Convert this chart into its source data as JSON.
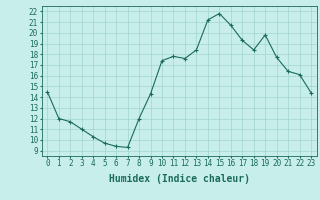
{
  "x": [
    0,
    1,
    2,
    3,
    4,
    5,
    6,
    7,
    8,
    9,
    10,
    11,
    12,
    13,
    14,
    15,
    16,
    17,
    18,
    19,
    20,
    21,
    22,
    23
  ],
  "y": [
    14.5,
    12.0,
    11.7,
    11.0,
    10.3,
    9.7,
    9.4,
    9.3,
    12.0,
    14.3,
    17.4,
    17.8,
    17.6,
    18.4,
    21.2,
    21.8,
    20.7,
    19.3,
    18.4,
    19.8,
    17.7,
    16.4,
    16.1,
    14.4
  ],
  "line_color": "#1a6b5a",
  "marker": "+",
  "bg_color": "#c8eeec",
  "grid_color": "#a0d4d0",
  "xlabel": "Humidex (Indice chaleur)",
  "xlabel_fontsize": 7,
  "xtick_labels": [
    "0",
    "1",
    "2",
    "3",
    "4",
    "5",
    "6",
    "7",
    "8",
    "9",
    "10",
    "11",
    "12",
    "13",
    "14",
    "15",
    "16",
    "17",
    "18",
    "19",
    "20",
    "21",
    "22",
    "23"
  ],
  "ytick_labels": [
    "9",
    "10",
    "11",
    "12",
    "13",
    "14",
    "15",
    "16",
    "17",
    "18",
    "19",
    "20",
    "21",
    "22"
  ],
  "ylim": [
    8.5,
    22.5
  ],
  "xlim": [
    -0.5,
    23.5
  ],
  "tick_fontsize": 5.5
}
